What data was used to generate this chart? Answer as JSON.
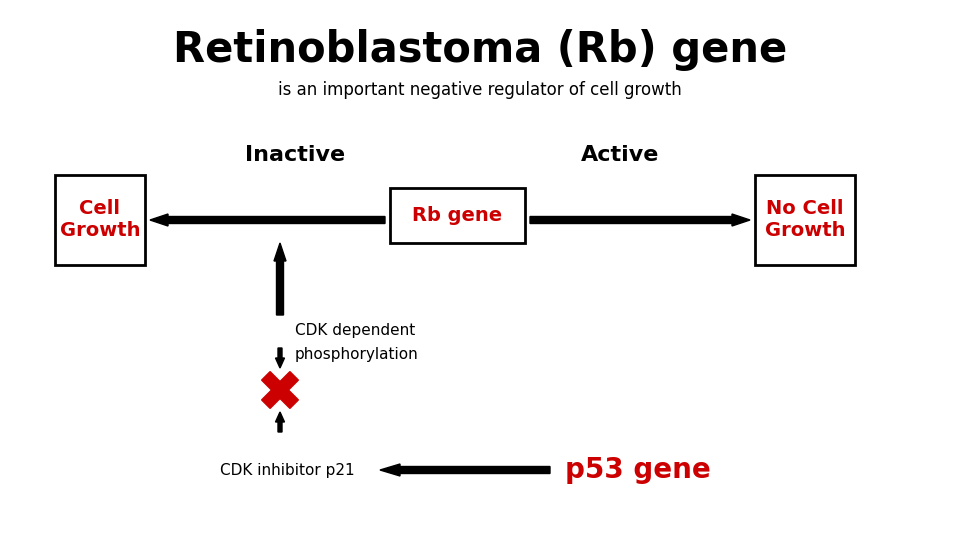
{
  "title": "Retinoblastoma (Rb) gene",
  "subtitle": "is an important negative regulator of cell growth",
  "title_fontsize": 30,
  "subtitle_fontsize": 12,
  "bg_color": "#ffffff",
  "label_inactive": "Inactive",
  "label_active": "Active",
  "box_cell_growth": "Cell\nGrowth",
  "box_rb_gene": "Rb gene",
  "box_no_cell_growth": "No Cell\nGrowth",
  "label_cdk_dependent": "CDK dependent",
  "label_phosphorylation": "phosphorylation",
  "label_cdk_inhibitor": "CDK inhibitor p21",
  "label_p53": "p53 gene",
  "red_color": "#cc0000",
  "black_color": "#000000",
  "box_edge_color": "#000000",
  "arrow_color": "#000000"
}
